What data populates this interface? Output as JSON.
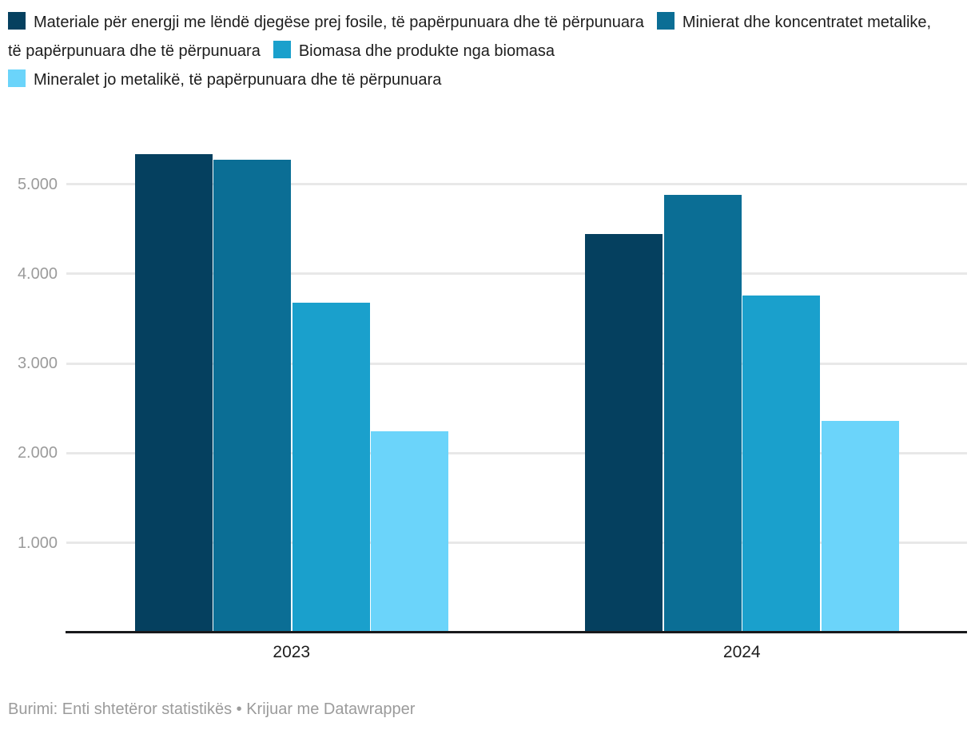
{
  "legend": {
    "items": [
      {
        "label": "Materiale për energji me lëndë djegëse prej fosile, të papërpunuara dhe të përpunuara",
        "color": "#05405f"
      },
      {
        "label": "Minierat dhe koncentratet metalike, të papërpunuara dhe të përpunuara",
        "color": "#0b6e95"
      },
      {
        "label": "Biomasa dhe produkte nga biomasa",
        "color": "#1aa0cc"
      },
      {
        "label": "Mineralet jo metalikë, të papërpunuara dhe të përpunuara",
        "color": "#6bd4fa"
      }
    ]
  },
  "chart_data": {
    "type": "bar",
    "categories": [
      "2023",
      "2024"
    ],
    "series": [
      {
        "name": "Materiale për energji me lëndë djegëse prej fosile, të papërpunuara dhe të përpunuara",
        "color": "#05405f",
        "values": [
          5330,
          4440
        ]
      },
      {
        "name": "Minierat dhe koncentratet metalike, të papërpunuara dhe të përpunuara",
        "color": "#0b6e95",
        "values": [
          5270,
          4880
        ]
      },
      {
        "name": "Biomasa dhe produkte nga biomasa",
        "color": "#1aa0cc",
        "values": [
          3680,
          3760
        ]
      },
      {
        "name": "Mineralet jo metalikë, të papërpunuara dhe të përpunuara",
        "color": "#6bd4fa",
        "values": [
          2240,
          2360
        ]
      }
    ],
    "yticks": [
      {
        "value": 1000,
        "label": "1.000"
      },
      {
        "value": 2000,
        "label": "2.000"
      },
      {
        "value": 3000,
        "label": "3.000"
      },
      {
        "value": 4000,
        "label": "4.000"
      },
      {
        "value": 5000,
        "label": "5.000"
      }
    ],
    "ylim": [
      0,
      5600
    ],
    "grid": true,
    "legend_position": "top"
  },
  "footer": {
    "text": "Burimi: Enti shtetëror statistikës • Krijuar me Datawrapper"
  },
  "colors": {
    "background": "#ffffff",
    "grid": "#e8e8e8",
    "axis": "#18191c",
    "tick_label": "#9b9b9b",
    "text": "#1d1d1d",
    "footer_text": "#9b9b9b"
  }
}
